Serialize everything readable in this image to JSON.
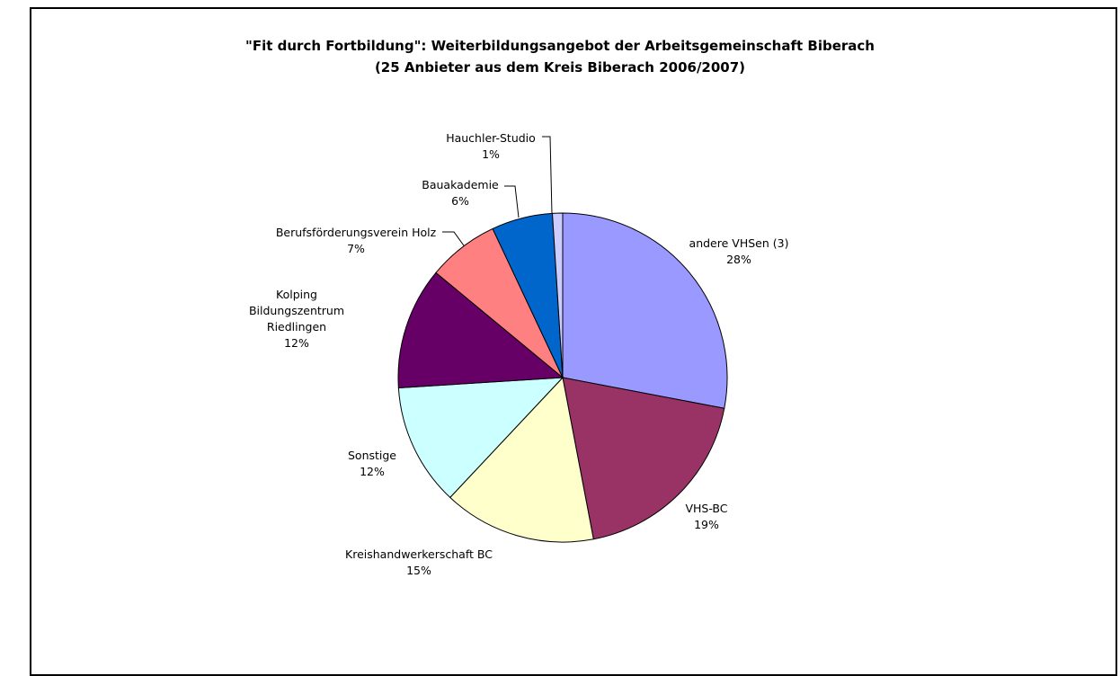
{
  "chart_data": {
    "type": "pie",
    "title": "\"Fit durch Fortbildung\": Weiterbildungsangebot der Arbeitsgemeinschaft Biberach",
    "subtitle": "(25 Anbieter aus dem Kreis Biberach 2006/2007)",
    "categories": [
      "andere VHSen (3)",
      "VHS-BC",
      "Kreishandwerkerschaft BC",
      "Sonstige",
      "Kolping Bildungszentrum Riedlingen",
      "Berufsförderungsverein Holz",
      "Bauakademie",
      "Hauchler-Studio"
    ],
    "values": [
      28,
      19,
      15,
      12,
      12,
      7,
      6,
      1
    ],
    "value_labels": [
      "28%",
      "19%",
      "15%",
      "12%",
      "12%",
      "7%",
      "6%",
      "1%"
    ],
    "colors": [
      "#9999ff",
      "#993366",
      "#ffffcc",
      "#ccffff",
      "#660066",
      "#ff8080",
      "#0066cc",
      "#ccccff"
    ]
  }
}
